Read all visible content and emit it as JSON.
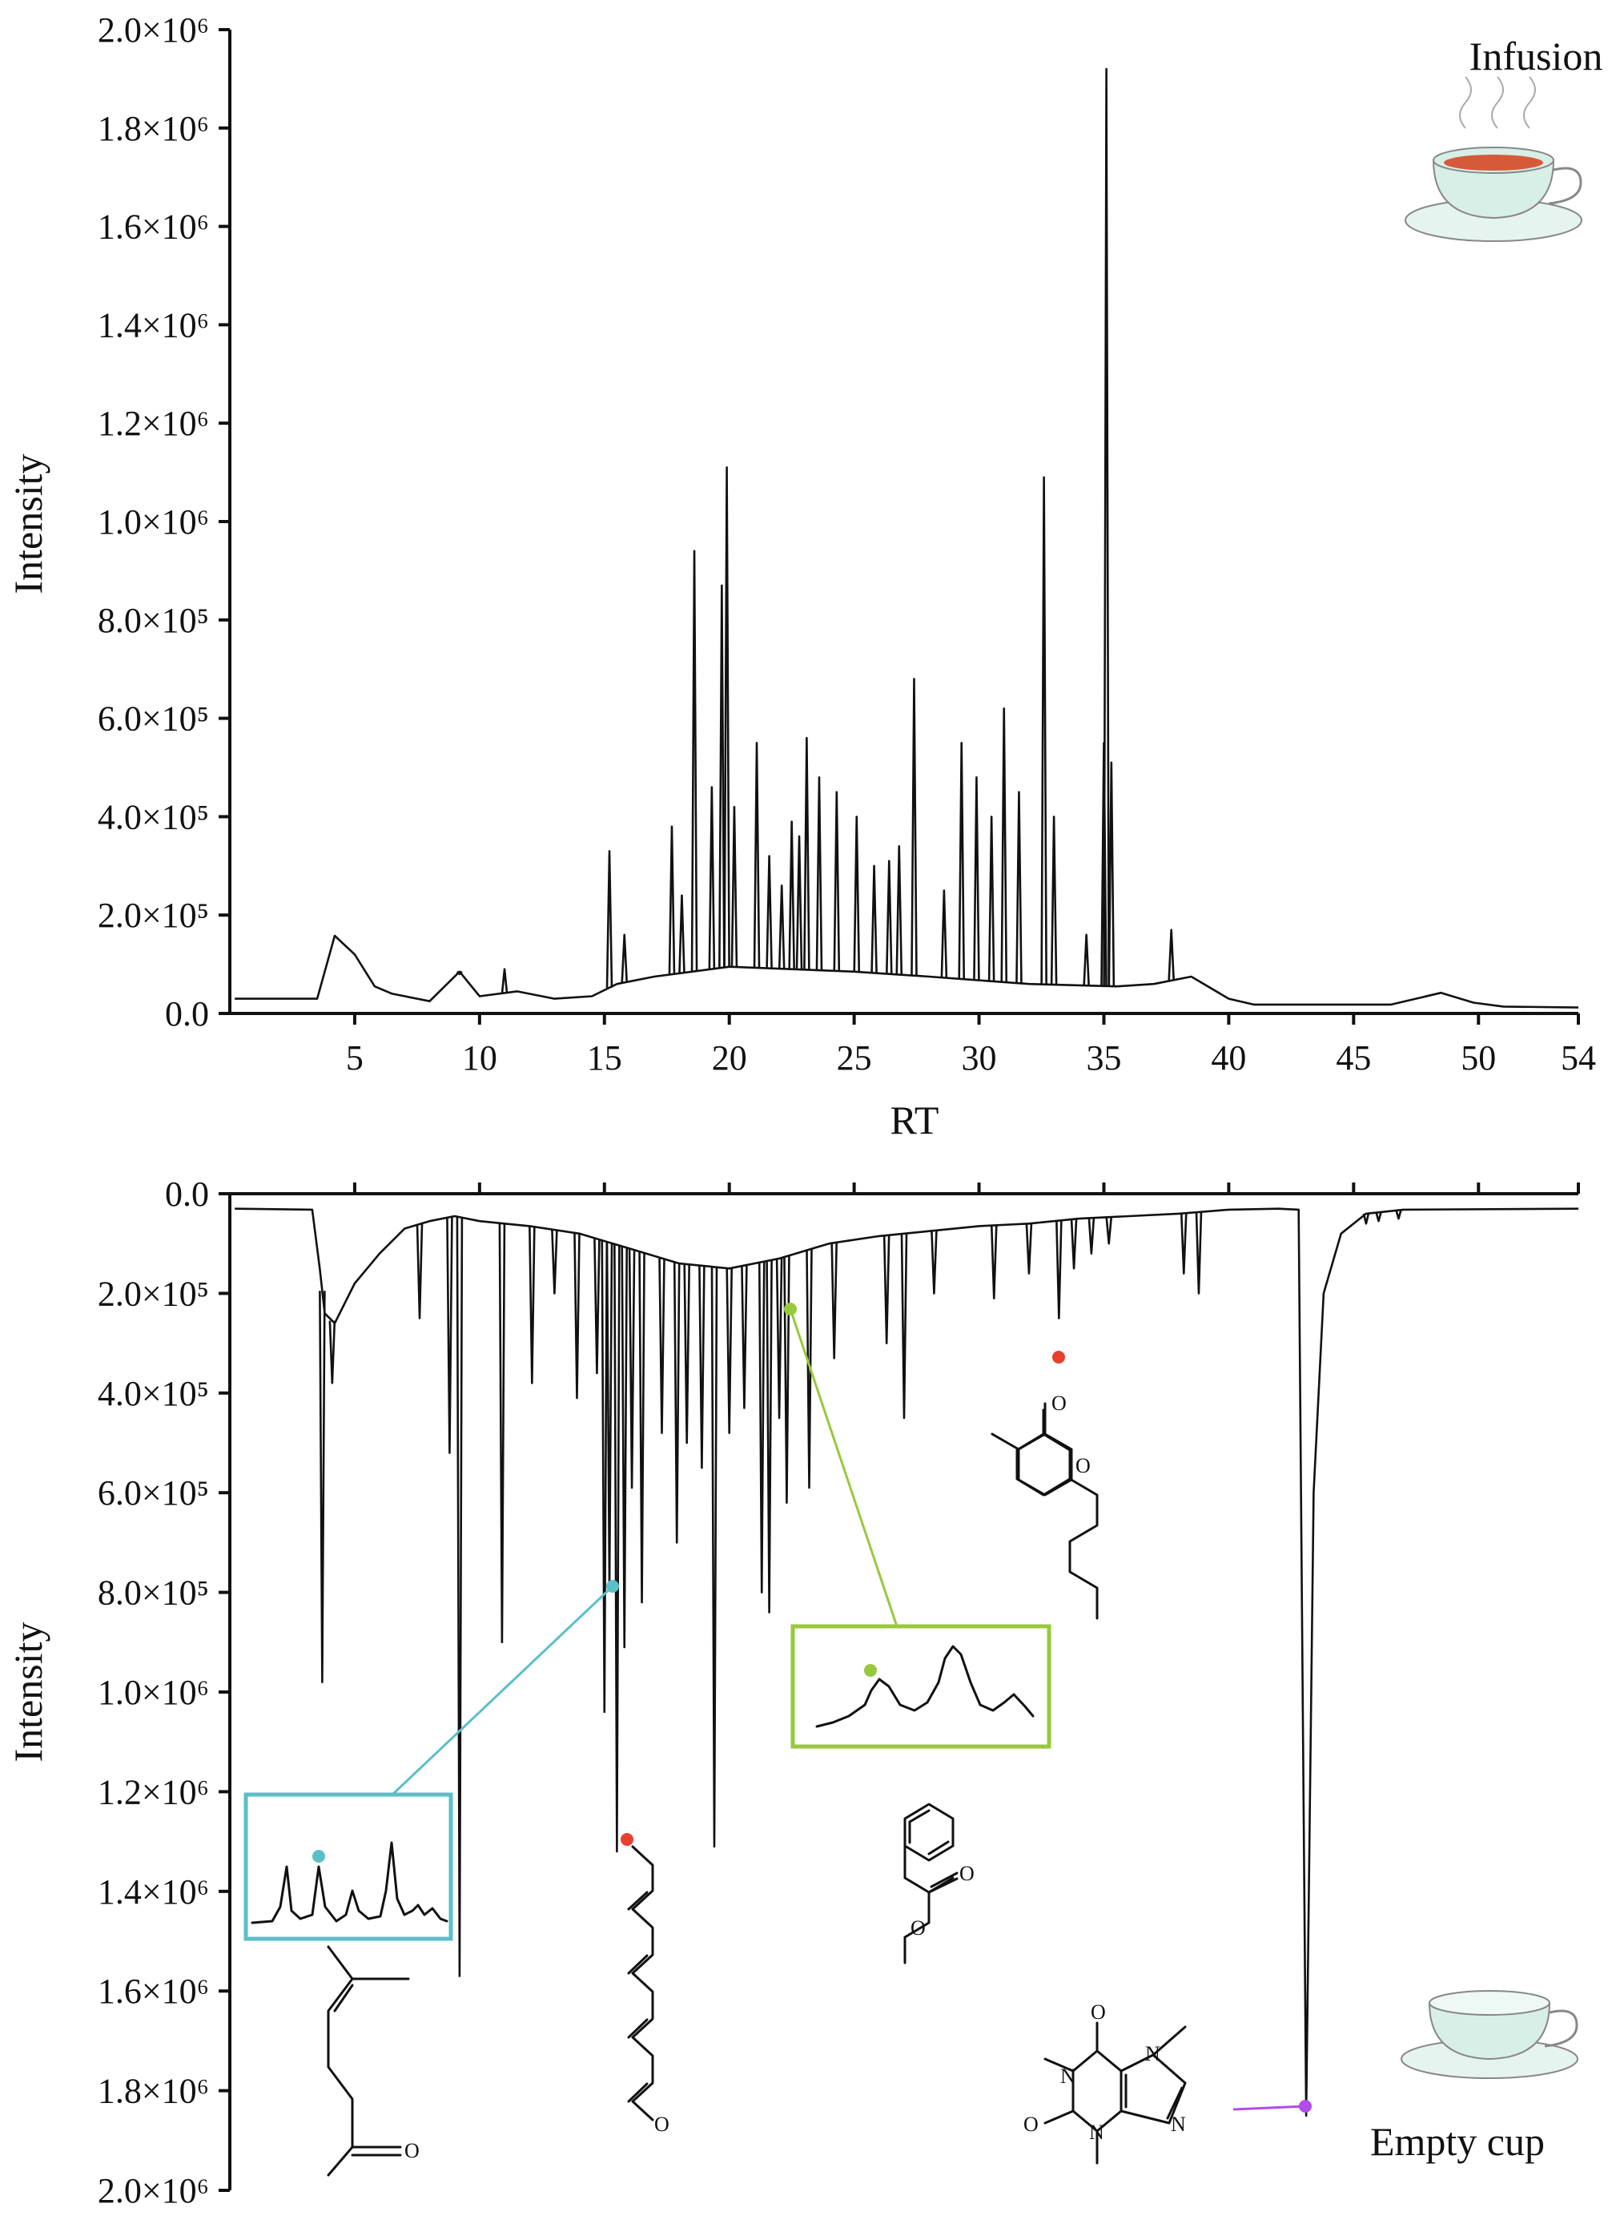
{
  "chart_data": [
    {
      "type": "line",
      "panel_label": "Infusion",
      "xlabel": "RT",
      "ylabel": "Intensity",
      "xlim": [
        0,
        54
      ],
      "ylim": [
        0,
        2000000
      ],
      "x_ticks": [
        "5",
        "10",
        "15",
        "20",
        "25",
        "30",
        "35",
        "40",
        "45",
        "50",
        "54"
      ],
      "y_ticks": [
        "0.0",
        "2.0×10⁵",
        "4.0×10⁵",
        "6.0×10⁵",
        "8.0×10⁵",
        "1.0×10⁶",
        "1.2×10⁶",
        "1.4×10⁶",
        "1.6×10⁶",
        "1.8×10⁶",
        "2.0×10⁶"
      ],
      "baseline": [
        [
          0.2,
          30000
        ],
        [
          3.5,
          30000
        ],
        [
          4.2,
          158000
        ],
        [
          5.0,
          120000
        ],
        [
          5.8,
          55000
        ],
        [
          6.5,
          40000
        ],
        [
          8.0,
          25000
        ],
        [
          9.2,
          85000
        ],
        [
          10.0,
          35000
        ],
        [
          11.5,
          45000
        ],
        [
          13.0,
          30000
        ],
        [
          14.5,
          35000
        ],
        [
          15.5,
          60000
        ],
        [
          17.0,
          75000
        ],
        [
          20.0,
          95000
        ],
        [
          25.0,
          85000
        ],
        [
          28.0,
          75000
        ],
        [
          32.0,
          60000
        ],
        [
          35.5,
          55000
        ],
        [
          37.0,
          60000
        ],
        [
          38.5,
          75000
        ],
        [
          40.0,
          30000
        ],
        [
          41.0,
          18000
        ],
        [
          46.5,
          18000
        ],
        [
          48.5,
          42000
        ],
        [
          49.8,
          22000
        ],
        [
          51.0,
          14000
        ],
        [
          54.0,
          12000
        ]
      ],
      "peaks": [
        [
          9.2,
          80000
        ],
        [
          11.0,
          90000
        ],
        [
          15.2,
          330000
        ],
        [
          15.8,
          160000
        ],
        [
          17.7,
          380000
        ],
        [
          18.1,
          240000
        ],
        [
          18.6,
          940000
        ],
        [
          19.3,
          460000
        ],
        [
          19.7,
          870000
        ],
        [
          19.9,
          1110000
        ],
        [
          20.2,
          420000
        ],
        [
          21.1,
          550000
        ],
        [
          21.6,
          320000
        ],
        [
          22.1,
          260000
        ],
        [
          22.5,
          390000
        ],
        [
          22.8,
          360000
        ],
        [
          23.1,
          560000
        ],
        [
          23.6,
          480000
        ],
        [
          24.3,
          450000
        ],
        [
          25.1,
          400000
        ],
        [
          25.8,
          300000
        ],
        [
          26.4,
          310000
        ],
        [
          26.8,
          340000
        ],
        [
          27.4,
          680000
        ],
        [
          28.6,
          250000
        ],
        [
          29.3,
          550000
        ],
        [
          29.9,
          480000
        ],
        [
          30.5,
          400000
        ],
        [
          31.0,
          620000
        ],
        [
          31.6,
          450000
        ],
        [
          32.6,
          1090000
        ],
        [
          33.0,
          400000
        ],
        [
          34.3,
          160000
        ],
        [
          35.0,
          550000
        ],
        [
          35.1,
          1920000
        ],
        [
          35.3,
          510000
        ],
        [
          37.7,
          170000
        ]
      ]
    },
    {
      "type": "line",
      "panel_label": "Empty cup",
      "xlabel": "",
      "ylabel": "Intensity",
      "xlim": [
        0,
        54
      ],
      "ylim": [
        0,
        2000000
      ],
      "inverted": true,
      "y_ticks": [
        "0.0",
        "2.0×10⁵",
        "4.0×10⁵",
        "6.0×10⁵",
        "8.0×10⁵",
        "1.0×10⁶",
        "1.2×10⁶",
        "1.4×10⁶",
        "1.6×10⁶",
        "1.8×10⁶",
        "2.0×10⁶"
      ],
      "baseline": [
        [
          0.2,
          30000
        ],
        [
          3.3,
          32000
        ],
        [
          3.6,
          150000
        ],
        [
          3.8,
          240000
        ],
        [
          4.2,
          260000
        ],
        [
          5.0,
          180000
        ],
        [
          6.0,
          120000
        ],
        [
          7.0,
          70000
        ],
        [
          8.0,
          55000
        ],
        [
          9.0,
          45000
        ],
        [
          10.0,
          55000
        ],
        [
          12.0,
          65000
        ],
        [
          14.0,
          80000
        ],
        [
          16.0,
          110000
        ],
        [
          18.0,
          140000
        ],
        [
          20.0,
          150000
        ],
        [
          22.0,
          130000
        ],
        [
          24.0,
          100000
        ],
        [
          26.0,
          85000
        ],
        [
          28.0,
          75000
        ],
        [
          30.0,
          65000
        ],
        [
          32.0,
          60000
        ],
        [
          34.0,
          50000
        ],
        [
          36.0,
          45000
        ],
        [
          38.0,
          40000
        ],
        [
          40.0,
          32000
        ],
        [
          42.0,
          30000
        ],
        [
          42.8,
          32000
        ],
        [
          43.1,
          1850000
        ],
        [
          43.4,
          600000
        ],
        [
          43.8,
          200000
        ],
        [
          44.5,
          80000
        ],
        [
          45.5,
          40000
        ],
        [
          47.0,
          32000
        ],
        [
          54.0,
          30000
        ]
      ],
      "peaks": [
        [
          3.7,
          980000
        ],
        [
          4.1,
          380000
        ],
        [
          7.6,
          250000
        ],
        [
          8.8,
          520000
        ],
        [
          9.2,
          1570000
        ],
        [
          10.9,
          900000
        ],
        [
          12.1,
          380000
        ],
        [
          13.0,
          200000
        ],
        [
          13.9,
          410000
        ],
        [
          14.7,
          360000
        ],
        [
          15.0,
          1040000
        ],
        [
          15.2,
          790000
        ],
        [
          15.5,
          1320000
        ],
        [
          15.8,
          910000
        ],
        [
          16.1,
          590000
        ],
        [
          16.5,
          820000
        ],
        [
          17.3,
          480000
        ],
        [
          17.9,
          700000
        ],
        [
          18.3,
          500000
        ],
        [
          18.9,
          550000
        ],
        [
          19.4,
          1310000
        ],
        [
          20.0,
          480000
        ],
        [
          20.6,
          430000
        ],
        [
          21.3,
          800000
        ],
        [
          21.6,
          840000
        ],
        [
          22.0,
          450000
        ],
        [
          22.3,
          620000
        ],
        [
          23.2,
          590000
        ],
        [
          24.2,
          330000
        ],
        [
          26.3,
          300000
        ],
        [
          27.0,
          450000
        ],
        [
          28.2,
          200000
        ],
        [
          30.6,
          210000
        ],
        [
          32.0,
          160000
        ],
        [
          33.2,
          250000
        ],
        [
          33.8,
          150000
        ],
        [
          34.5,
          120000
        ],
        [
          35.2,
          100000
        ],
        [
          38.2,
          160000
        ],
        [
          38.8,
          200000
        ],
        [
          45.5,
          60000
        ],
        [
          46.0,
          55000
        ],
        [
          46.8,
          50000
        ]
      ]
    }
  ],
  "molecule_atoms": {
    "oxygen": "O",
    "nitrogen": "N"
  },
  "colors": {
    "axis": "#111111",
    "trace": "#111111",
    "callout_cyan": "#5bbfc9",
    "callout_green": "#97c93c",
    "marker_red": "#e8402f",
    "marker_purple": "#b24be8",
    "tea": "#d65a3a",
    "cup": "#d8efe8"
  }
}
